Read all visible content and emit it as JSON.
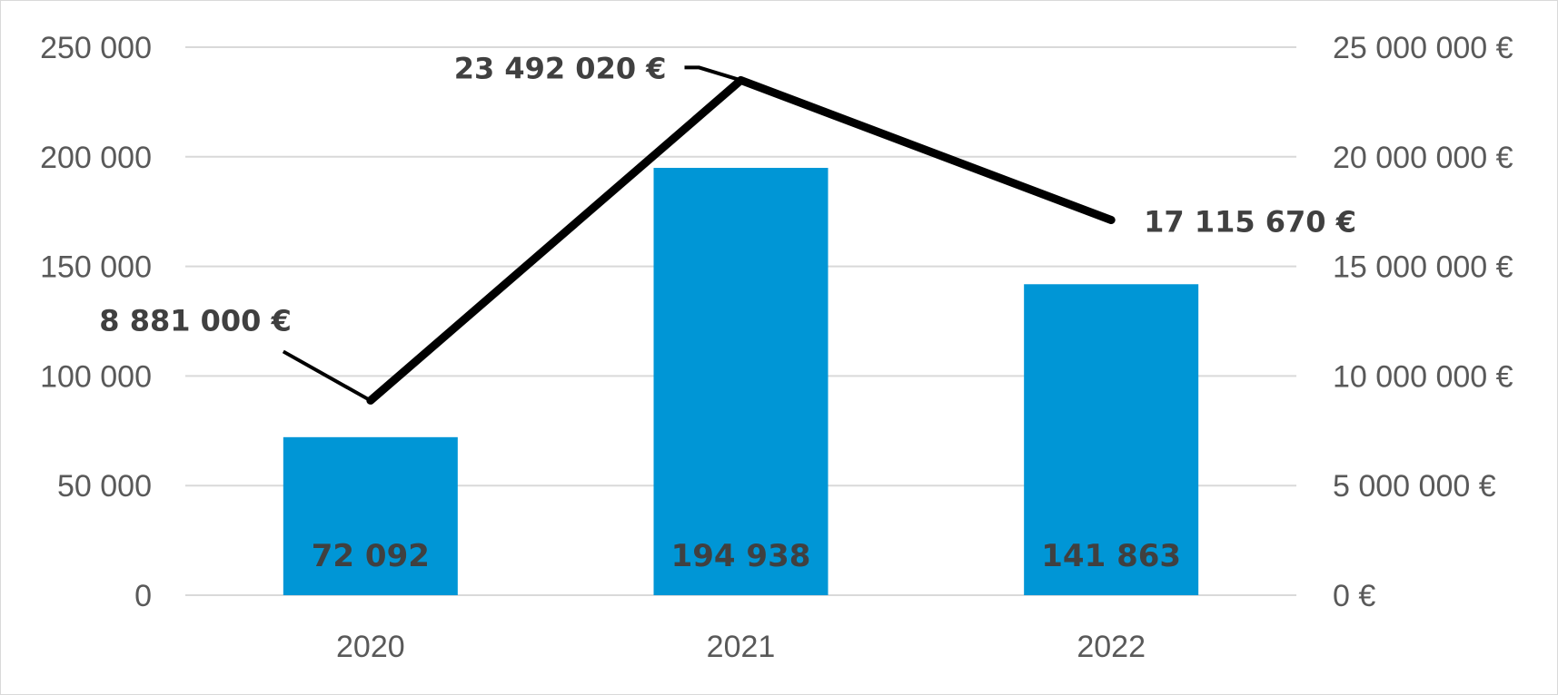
{
  "chart_data": {
    "type": "bar",
    "categories": [
      "2020",
      "2021",
      "2022"
    ],
    "series": [
      {
        "type": "bar",
        "axis": "left",
        "values": [
          72092,
          194938,
          141863
        ],
        "labels": [
          "72 092",
          "194 938",
          "141 863"
        ],
        "color": "#0096d6"
      },
      {
        "type": "line",
        "axis": "right",
        "values": [
          8881000,
          23492020,
          17115670
        ],
        "labels": [
          "8 881 000 €",
          "23 492 020 €",
          "17 115 670 €"
        ],
        "color": "#000000"
      }
    ],
    "y_left": {
      "range": [
        0,
        250000
      ],
      "ticks": [
        0,
        50000,
        100000,
        150000,
        200000,
        250000
      ],
      "tick_labels": [
        "0",
        "50 000",
        "100 000",
        "150 000",
        "200 000",
        "250 000"
      ]
    },
    "y_right": {
      "range": [
        0,
        25000000
      ],
      "ticks": [
        0,
        5000000,
        10000000,
        15000000,
        20000000,
        25000000
      ],
      "tick_labels": [
        "0 €",
        "5 000 000 €",
        "10 000 000 €",
        "15 000 000 €",
        "20 000 000 €",
        "25 000 000 €"
      ]
    },
    "title": "",
    "xlabel": "",
    "ylabel": "",
    "grid": true,
    "legend": "none",
    "gridColor": "#d9d9d9"
  }
}
